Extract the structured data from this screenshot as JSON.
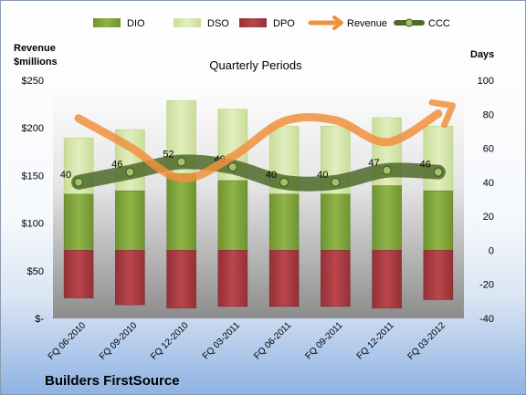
{
  "chart_data": {
    "type": "bar",
    "title": "Quarterly Periods",
    "company": "Builders FirstSource",
    "y_left_label": [
      "Revenue",
      "$millions"
    ],
    "y_right_label": "Days",
    "y_left_ticks": [
      "$-",
      "$50",
      "$100",
      "$150",
      "$200",
      "$250"
    ],
    "y_left_range": [
      0,
      250
    ],
    "y_right_ticks": [
      "-40",
      "-20",
      "0",
      "20",
      "40",
      "60",
      "80",
      "100"
    ],
    "y_right_range": [
      -40,
      100
    ],
    "categories": [
      "FQ 06-2010",
      "FQ 09-2010",
      "FQ 12-2010",
      "FQ 03-2011",
      "FQ 06-2011",
      "FQ 09-2011",
      "FQ 12-2011",
      "FQ 03-2012"
    ],
    "legend": [
      "DIO",
      "DSO",
      "DPO",
      "Revenue",
      "CCC"
    ],
    "legend_position": "top",
    "series": [
      {
        "name": "DIO",
        "axis": "days",
        "values": [
          33,
          35,
          45,
          41,
          33,
          33,
          38,
          35
        ]
      },
      {
        "name": "DSO",
        "axis": "days",
        "values": [
          33,
          36,
          43,
          42,
          40,
          40,
          40,
          38
        ]
      },
      {
        "name": "DPO",
        "axis": "days",
        "values": [
          -28,
          -32,
          -34,
          -33,
          -33,
          -33,
          -34,
          -29
        ]
      },
      {
        "name": "Revenue",
        "axis": "revenue",
        "values": [
          210,
          180,
          147,
          170,
          207,
          208,
          185,
          215
        ]
      },
      {
        "name": "CCC",
        "axis": "days",
        "values": [
          40,
          46,
          52,
          49,
          40,
          40,
          47,
          46
        ],
        "labels": [
          "40",
          "46",
          "52",
          "49",
          "40",
          "40",
          "47",
          "46"
        ]
      }
    ],
    "colors": {
      "DIO": "#7a9e35",
      "DSO": "#d3e3a6",
      "DPO": "#a83a3f",
      "Revenue": "#f0913d",
      "CCC": "#4e6a2a"
    },
    "grid": false
  }
}
